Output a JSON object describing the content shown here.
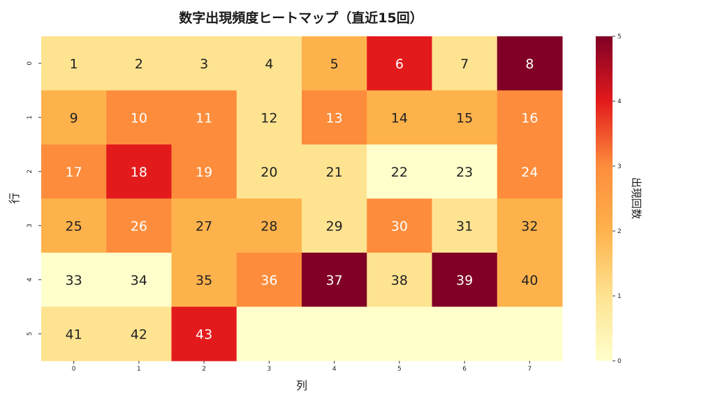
{
  "chart_data": {
    "type": "heatmap",
    "title": "数字出現頻度ヒートマップ（直近15回）",
    "xlabel": "列",
    "ylabel": "行",
    "colorbar_label": "出現回数",
    "x_ticks": [
      "0",
      "1",
      "2",
      "3",
      "4",
      "5",
      "6",
      "7"
    ],
    "y_ticks": [
      "0",
      "1",
      "2",
      "3",
      "4",
      "5"
    ],
    "colorbar_ticks": [
      "0",
      "1",
      "2",
      "3",
      "4",
      "5"
    ],
    "color_range": [
      0,
      5
    ],
    "colormap": "YlOrRd",
    "cells": [
      [
        {
          "label": "1",
          "value": 1
        },
        {
          "label": "2",
          "value": 1
        },
        {
          "label": "3",
          "value": 1
        },
        {
          "label": "4",
          "value": 1
        },
        {
          "label": "5",
          "value": 2
        },
        {
          "label": "6",
          "value": 4
        },
        {
          "label": "7",
          "value": 1
        },
        {
          "label": "8",
          "value": 5
        }
      ],
      [
        {
          "label": "9",
          "value": 2
        },
        {
          "label": "10",
          "value": 3
        },
        {
          "label": "11",
          "value": 3
        },
        {
          "label": "12",
          "value": 1
        },
        {
          "label": "13",
          "value": 3
        },
        {
          "label": "14",
          "value": 2
        },
        {
          "label": "15",
          "value": 2
        },
        {
          "label": "16",
          "value": 3
        }
      ],
      [
        {
          "label": "17",
          "value": 3
        },
        {
          "label": "18",
          "value": 4
        },
        {
          "label": "19",
          "value": 3
        },
        {
          "label": "20",
          "value": 1
        },
        {
          "label": "21",
          "value": 1
        },
        {
          "label": "22",
          "value": 0
        },
        {
          "label": "23",
          "value": 0
        },
        {
          "label": "24",
          "value": 3
        }
      ],
      [
        {
          "label": "25",
          "value": 2
        },
        {
          "label": "26",
          "value": 3
        },
        {
          "label": "27",
          "value": 2
        },
        {
          "label": "28",
          "value": 2
        },
        {
          "label": "29",
          "value": 1
        },
        {
          "label": "30",
          "value": 3
        },
        {
          "label": "31",
          "value": 1
        },
        {
          "label": "32",
          "value": 2
        }
      ],
      [
        {
          "label": "33",
          "value": 0
        },
        {
          "label": "34",
          "value": 0
        },
        {
          "label": "35",
          "value": 2
        },
        {
          "label": "36",
          "value": 3
        },
        {
          "label": "37",
          "value": 5
        },
        {
          "label": "38",
          "value": 1
        },
        {
          "label": "39",
          "value": 5
        },
        {
          "label": "40",
          "value": 2
        }
      ],
      [
        {
          "label": "41",
          "value": 1
        },
        {
          "label": "42",
          "value": 1
        },
        {
          "label": "43",
          "value": 4
        },
        {
          "label": "",
          "value": 0
        },
        {
          "label": "",
          "value": 0
        },
        {
          "label": "",
          "value": 0
        },
        {
          "label": "",
          "value": 0
        },
        {
          "label": "",
          "value": 0
        }
      ]
    ]
  }
}
